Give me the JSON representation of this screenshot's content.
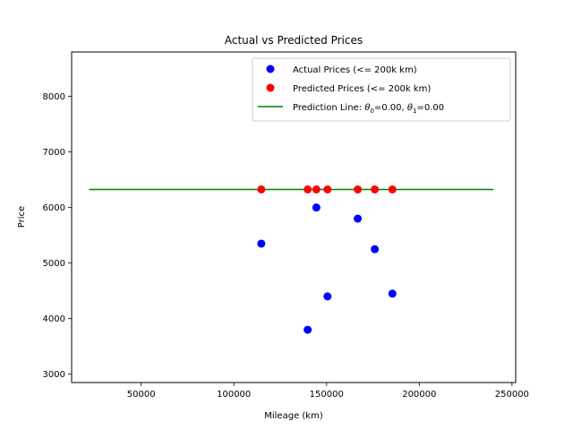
{
  "chart_data": {
    "type": "scatter",
    "title": "Actual vs Predicted Prices",
    "xlabel": "Mileage (km)",
    "ylabel": "Price",
    "xlim": [
      12500,
      252000
    ],
    "ylim": [
      2850,
      8800
    ],
    "xticks": [
      50000,
      100000,
      150000,
      200000,
      250000
    ],
    "xtick_labels": [
      "50000",
      "100000",
      "150000",
      "200000",
      "250000"
    ],
    "yticks": [
      3000,
      4000,
      5000,
      6000,
      7000,
      8000
    ],
    "ytick_labels": [
      "3000",
      "4000",
      "5000",
      "6000",
      "7000",
      "8000"
    ],
    "grid": false,
    "legend_position": "top-right",
    "series": [
      {
        "name": "Actual Prices (<= 200k km)",
        "kind": "scatter",
        "color": "#0000ff",
        "x": [
          114800,
          139800,
          144500,
          150500,
          166800,
          176000,
          185500
        ],
        "y": [
          5350,
          3800,
          6000,
          4400,
          5800,
          5250,
          4450
        ]
      },
      {
        "name": "Predicted Prices (<= 200k km)",
        "kind": "scatter",
        "color": "#ff0000",
        "x": [
          114800,
          139800,
          144500,
          150500,
          166800,
          176000,
          185500
        ],
        "y": [
          6325,
          6325,
          6325,
          6325,
          6325,
          6325,
          6325
        ]
      },
      {
        "name_prefix": "Prediction Line: ",
        "name_theta0": "θ",
        "theta0_sub": "0",
        "name_mid": "=0.00, ",
        "name_theta1": "θ",
        "theta1_sub": "1",
        "name_suffix": "=0.00",
        "kind": "line",
        "color": "#008000",
        "x": [
          22000,
          240000
        ],
        "y": [
          6325,
          6325
        ]
      }
    ]
  }
}
